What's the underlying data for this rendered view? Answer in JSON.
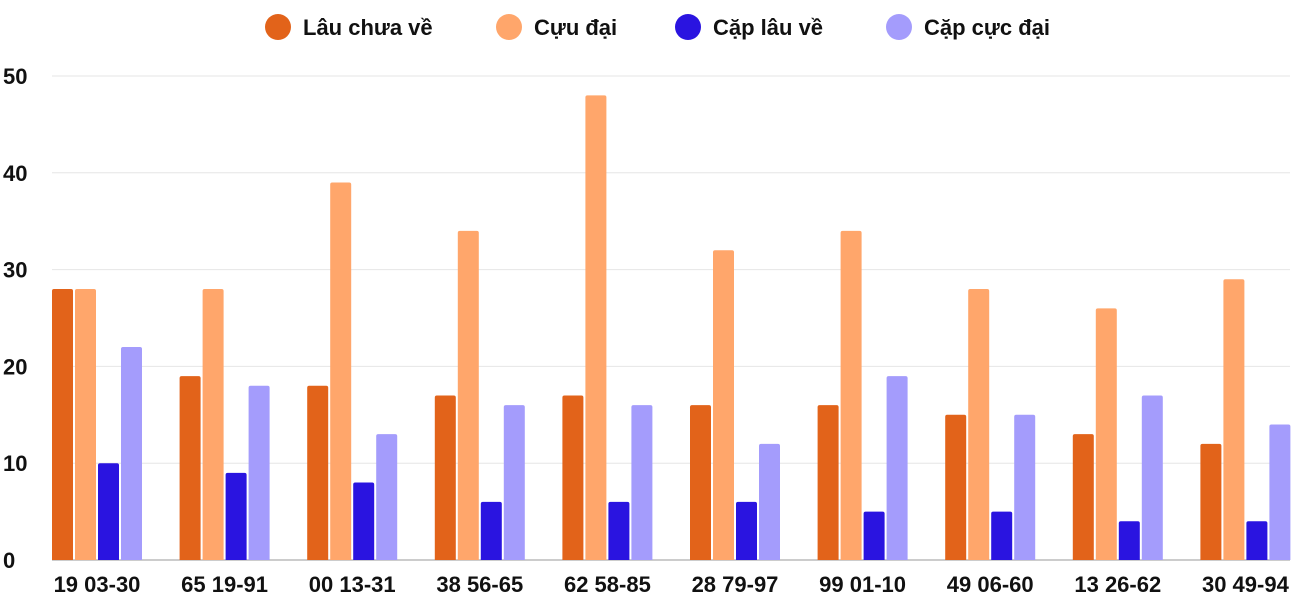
{
  "chart_data": {
    "type": "bar",
    "title": "",
    "xlabel": "",
    "ylabel": "",
    "ylim": [
      0,
      50
    ],
    "yticks": [
      0,
      10,
      20,
      30,
      40,
      50
    ],
    "grid": true,
    "legend_position": "top",
    "categories": [
      "19 03-30",
      "65 19-91",
      "00 13-31",
      "38 56-65",
      "62 58-85",
      "28 79-97",
      "99 01-10",
      "49 06-60",
      "13 26-62",
      "30 49-94"
    ],
    "series": [
      {
        "name": "Lâu chưa về",
        "color": "#e2631a",
        "values": [
          28,
          19,
          18,
          17,
          17,
          16,
          16,
          15,
          13,
          12
        ]
      },
      {
        "name": "Cựu đại",
        "color": "#ffa66b",
        "values": [
          28,
          28,
          39,
          34,
          48,
          32,
          34,
          28,
          26,
          29
        ]
      },
      {
        "name": "Cặp lâu về",
        "color": "#2a14e0",
        "values": [
          10,
          9,
          8,
          6,
          6,
          6,
          5,
          5,
          4,
          4
        ]
      },
      {
        "name": "Cặp cực đại",
        "color": "#a49cfc",
        "values": [
          22,
          18,
          13,
          16,
          16,
          12,
          19,
          15,
          17,
          14
        ]
      }
    ]
  }
}
